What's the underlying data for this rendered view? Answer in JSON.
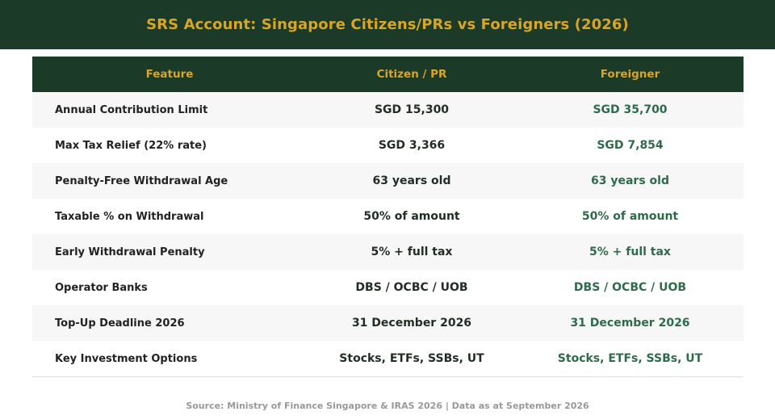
{
  "title": "SRS Account: Singapore Citizens/PRs vs Foreigners (2026)",
  "table": {
    "headers": [
      "Feature",
      "Citizen / PR",
      "Foreigner"
    ],
    "rows": [
      {
        "feature": "Annual Contribution Limit",
        "citizen": "SGD 15,300",
        "foreigner": "SGD 35,700"
      },
      {
        "feature": "Max Tax Relief (22% rate)",
        "citizen": "SGD 3,366",
        "foreigner": "SGD 7,854"
      },
      {
        "feature": "Penalty-Free Withdrawal Age",
        "citizen": "63 years old",
        "foreigner": "63 years old"
      },
      {
        "feature": "Taxable % on Withdrawal",
        "citizen": "50% of amount",
        "foreigner": "50% of amount"
      },
      {
        "feature": "Early Withdrawal Penalty",
        "citizen": "5% + full tax",
        "foreigner": "5% + full tax"
      },
      {
        "feature": "Operator Banks",
        "citizen": "DBS / OCBC / UOB",
        "foreigner": "DBS / OCBC / UOB"
      },
      {
        "feature": "Top-Up Deadline 2026",
        "citizen": "31 December 2026",
        "foreigner": "31 December 2026"
      },
      {
        "feature": "Key Investment Options",
        "citizen": "Stocks, ETFs, SSBs, UT",
        "foreigner": "Stocks, ETFs, SSBs, UT"
      }
    ]
  },
  "footer": "Source: Ministry of Finance Singapore & IRAS 2026  |  Data as at September 2026",
  "colors": {
    "header_bg": "#1b3a28",
    "accent_gold": "#d9a526",
    "foreigner_text": "#2e6b4a",
    "row_alt_bg": "#f7f7f7"
  }
}
